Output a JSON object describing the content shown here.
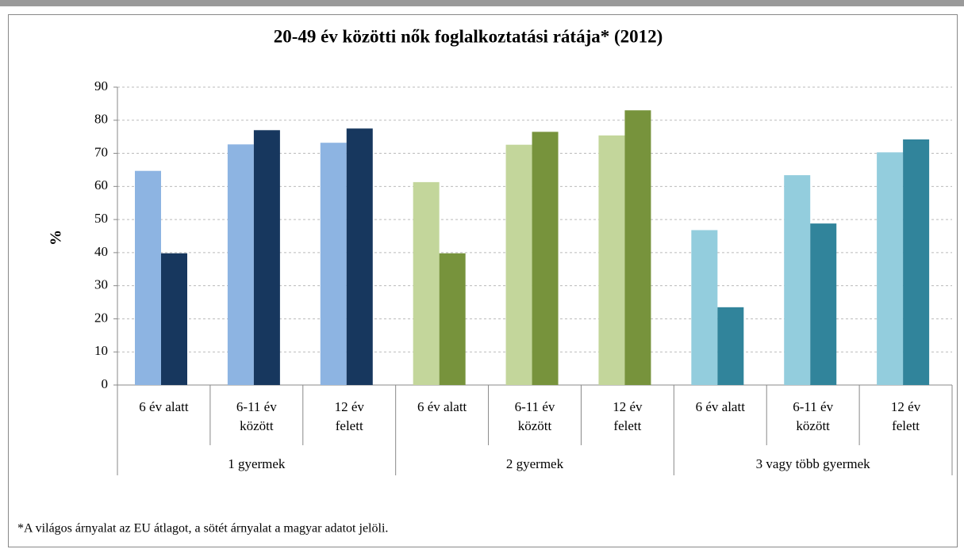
{
  "chart_data": {
    "type": "bar",
    "title": "20-49 év közötti nők foglalkoztatási rátája* (2012)",
    "y_label": "%",
    "categories": [
      [
        "6 év alatt"
      ],
      [
        "6-11 év",
        "között"
      ],
      [
        "12 év",
        "felett"
      ],
      [
        "6 év alatt"
      ],
      [
        "6-11 év",
        "között"
      ],
      [
        "12 év",
        "felett"
      ],
      [
        "6 év alatt"
      ],
      [
        "6-11 év",
        "között"
      ],
      [
        "12 év",
        "felett"
      ]
    ],
    "groups": [
      "1 gyermek",
      "2 gyermek",
      "3 vagy több gyermek"
    ],
    "series": [
      {
        "colors": [
          "#8db4e2",
          "#c3d69b",
          "#93cddd"
        ],
        "values": [
          64.7,
          72.7,
          73.2,
          61.3,
          72.6,
          75.4,
          46.8,
          63.4,
          70.3
        ]
      },
      {
        "colors": [
          "#17375e",
          "#77933c",
          "#31849b"
        ],
        "values": [
          39.8,
          77,
          77.5,
          39.8,
          76.5,
          83,
          23.5,
          48.8,
          74.2
        ]
      }
    ],
    "ylim": [
      0,
      90
    ],
    "yticks": [
      0,
      10,
      20,
      30,
      40,
      50,
      60,
      70,
      80,
      90
    ],
    "grid": true,
    "footnote": "*A világos árnyalat az EU átlagot, a sötét árnyalat a magyar adatot jelöli."
  }
}
